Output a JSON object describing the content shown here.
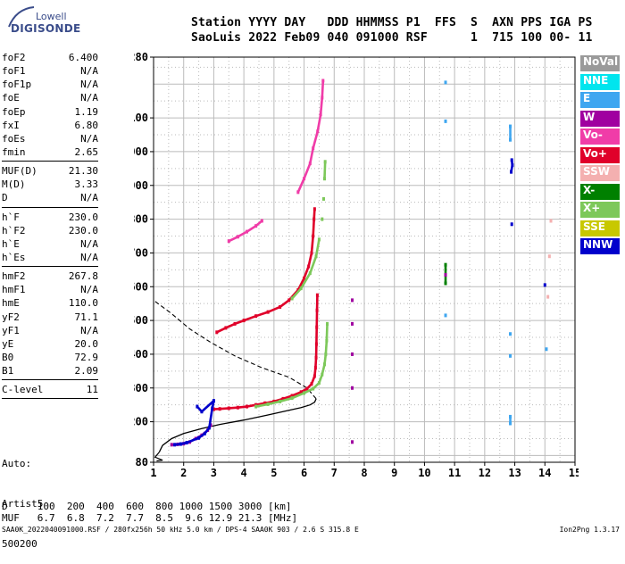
{
  "logo": {
    "line1": "Lowell",
    "line2": "DIGISONDE"
  },
  "header": {
    "labels": "Station YYYY DAY   DDD HHMMSS P1  FFS  S  AXN PPS IGA PS",
    "values": "SaoLuis 2022 Feb09 040 091000 RSF      1  715 100 00- 11"
  },
  "params": {
    "group1": [
      {
        "name": "foF2",
        "value": "6.400"
      },
      {
        "name": "foF1",
        "value": "N/A"
      },
      {
        "name": "foF1p",
        "value": "N/A"
      },
      {
        "name": "foE",
        "value": "N/A"
      },
      {
        "name": "foEp",
        "value": "1.19"
      },
      {
        "name": "fxI",
        "value": "6.80"
      },
      {
        "name": "foEs",
        "value": "N/A"
      },
      {
        "name": "fmin",
        "value": "2.65"
      }
    ],
    "group2": [
      {
        "name": "MUF(D)",
        "value": "21.30"
      },
      {
        "name": "M(D)",
        "value": "3.33"
      },
      {
        "name": "D",
        "value": "N/A"
      }
    ],
    "group3": [
      {
        "name": "h`F",
        "value": "230.0"
      },
      {
        "name": "h`F2",
        "value": "230.0"
      },
      {
        "name": "h`E",
        "value": "N/A"
      },
      {
        "name": "h`Es",
        "value": "N/A"
      }
    ],
    "group4": [
      {
        "name": "hmF2",
        "value": "267.8"
      },
      {
        "name": "hmF1",
        "value": "N/A"
      },
      {
        "name": "hmE",
        "value": "110.0"
      },
      {
        "name": "yF2",
        "value": "71.1"
      },
      {
        "name": "yF1",
        "value": "N/A"
      },
      {
        "name": "yE",
        "value": "20.0"
      },
      {
        "name": "B0",
        "value": "72.9"
      },
      {
        "name": "B1",
        "value": "2.09"
      }
    ],
    "group5": [
      {
        "name": "C-level",
        "value": "11"
      }
    ]
  },
  "autoscale": {
    "line1": "Auto:",
    "line2": "Artist5",
    "line3": "500200"
  },
  "legend": [
    {
      "label": "NoVal",
      "color": "#9a9a9a"
    },
    {
      "label": "NNE",
      "color": "#00e5ee"
    },
    {
      "label": "E",
      "color": "#3ea6f0"
    },
    {
      "label": "W",
      "color": "#a000a0"
    },
    {
      "label": "Vo-",
      "color": "#f03ca8"
    },
    {
      "label": "Vo+",
      "color": "#e0002a"
    },
    {
      "label": "SSW",
      "color": "#f4b0b0"
    },
    {
      "label": "X-",
      "color": "#008000"
    },
    {
      "label": "X+",
      "color": "#7dc85a"
    },
    {
      "label": "SSE",
      "color": "#c8c800"
    },
    {
      "label": "NNW",
      "color": "#0000cc"
    }
  ],
  "footer": {
    "d_line": "D     100  200  400  600  800 1000 1500 3000 [km]",
    "muf_line": "MUF   6.7  6.8  7.2  7.7  8.5  9.6 12.9 21.3 [MHz]",
    "file_line": "SAA0K_2022040091000.RSF / 280fx256h 50 kHz 5.0 km / DPS-4 SAA0K 903 / 2.6 S 315.8 E",
    "version": "Ion2Png 1.3.17"
  },
  "chart_data": {
    "type": "scatter",
    "title": "",
    "xlabel": "",
    "ylabel": "",
    "xlim": [
      1,
      15
    ],
    "ylim": [
      80,
      1280
    ],
    "x_ticks": [
      1,
      2,
      3,
      4,
      5,
      6,
      7,
      8,
      9,
      10,
      11,
      12,
      13,
      14,
      15
    ],
    "y_ticks": [
      80,
      200,
      300,
      400,
      500,
      600,
      700,
      800,
      900,
      1000,
      1100,
      1280
    ],
    "series": [
      {
        "name": "Vo+",
        "color": "#e0002a",
        "points": [
          [
            3.0,
            237
          ],
          [
            3.2,
            238
          ],
          [
            3.5,
            240
          ],
          [
            3.8,
            242
          ],
          [
            4.1,
            245
          ],
          [
            4.4,
            250
          ],
          [
            4.7,
            255
          ],
          [
            5.0,
            260
          ],
          [
            5.3,
            268
          ],
          [
            5.6,
            277
          ],
          [
            5.9,
            288
          ],
          [
            6.1,
            298
          ],
          [
            6.25,
            312
          ],
          [
            6.35,
            335
          ],
          [
            6.38,
            360
          ],
          [
            6.4,
            390
          ],
          [
            6.41,
            430
          ],
          [
            6.42,
            480
          ],
          [
            6.43,
            530
          ],
          [
            6.44,
            575
          ]
        ]
      },
      {
        "name": "X+",
        "color": "#7dc85a",
        "points": [
          [
            4.4,
            245
          ],
          [
            4.8,
            252
          ],
          [
            5.2,
            260
          ],
          [
            5.6,
            270
          ],
          [
            6.0,
            285
          ],
          [
            6.3,
            298
          ],
          [
            6.5,
            315
          ],
          [
            6.6,
            340
          ],
          [
            6.68,
            370
          ],
          [
            6.72,
            400
          ],
          [
            6.75,
            440
          ],
          [
            6.77,
            490
          ]
        ]
      },
      {
        "name": "Vo+ 2nd",
        "color": "#e0002a",
        "points": [
          [
            3.1,
            465
          ],
          [
            3.4,
            478
          ],
          [
            3.7,
            490
          ],
          [
            4.0,
            500
          ],
          [
            4.4,
            513
          ],
          [
            4.8,
            525
          ],
          [
            5.2,
            540
          ],
          [
            5.5,
            560
          ],
          [
            5.8,
            590
          ],
          [
            6.0,
            625
          ],
          [
            6.15,
            660
          ],
          [
            6.25,
            700
          ],
          [
            6.3,
            750
          ],
          [
            6.33,
            800
          ],
          [
            6.35,
            830
          ]
        ]
      },
      {
        "name": "X+ 2nd",
        "color": "#7dc85a",
        "points": [
          [
            5.6,
            565
          ],
          [
            5.9,
            595
          ],
          [
            6.2,
            640
          ],
          [
            6.4,
            690
          ],
          [
            6.5,
            740
          ],
          [
            6.6,
            800
          ],
          [
            6.65,
            860
          ],
          [
            6.68,
            920
          ],
          [
            6.7,
            970
          ]
        ]
      },
      {
        "name": "Vo- 3rd",
        "color": "#f03ca8",
        "points": [
          [
            3.5,
            735
          ],
          [
            3.8,
            748
          ],
          [
            4.1,
            763
          ],
          [
            4.4,
            780
          ],
          [
            4.6,
            795
          ],
          [
            5.8,
            880
          ],
          [
            6.0,
            920
          ],
          [
            6.2,
            965
          ],
          [
            6.3,
            1010
          ],
          [
            6.45,
            1060
          ],
          [
            6.55,
            1110
          ],
          [
            6.6,
            1160
          ],
          [
            6.63,
            1210
          ]
        ]
      },
      {
        "name": "W low",
        "color": "#a000a0",
        "points": [
          [
            1.6,
            132
          ],
          [
            1.8,
            133
          ],
          [
            2.0,
            135
          ],
          [
            2.2,
            140
          ],
          [
            2.4,
            150
          ],
          [
            2.6,
            160
          ],
          [
            2.8,
            175
          ],
          [
            2.9,
            190
          ]
        ]
      },
      {
        "name": "NNW low",
        "color": "#0000cc",
        "points": [
          [
            1.7,
            132
          ],
          [
            1.9,
            134
          ],
          [
            2.1,
            138
          ],
          [
            2.5,
            152
          ],
          [
            2.7,
            165
          ],
          [
            2.85,
            182
          ],
          [
            2.95,
            240
          ],
          [
            3.0,
            262
          ],
          [
            2.6,
            230
          ],
          [
            2.45,
            245
          ]
        ]
      },
      {
        "name": "E",
        "color": "#3ea6f0",
        "points": [
          [
            10.7,
            1205
          ],
          [
            10.7,
            1090
          ],
          [
            10.7,
            515
          ],
          [
            12.85,
            1075
          ],
          [
            12.85,
            1035
          ],
          [
            12.85,
            460
          ],
          [
            12.85,
            395
          ],
          [
            12.85,
            215
          ],
          [
            12.85,
            195
          ],
          [
            14.05,
            415
          ]
        ]
      },
      {
        "name": "NNW",
        "color": "#0000cc",
        "points": [
          [
            12.9,
            975
          ],
          [
            12.92,
            960
          ],
          [
            12.88,
            940
          ],
          [
            12.9,
            785
          ],
          [
            14.0,
            605
          ]
        ]
      },
      {
        "name": "X- ",
        "color": "#008000",
        "points": [
          [
            10.7,
            665
          ],
          [
            10.7,
            610
          ]
        ]
      },
      {
        "name": "W",
        "color": "#a000a0",
        "points": [
          [
            7.6,
            560
          ],
          [
            7.6,
            490
          ],
          [
            7.6,
            400
          ],
          [
            7.6,
            300
          ],
          [
            7.6,
            140
          ],
          [
            10.7,
            635
          ]
        ]
      },
      {
        "name": "SSW",
        "color": "#f4b0b0",
        "points": [
          [
            14.2,
            795
          ],
          [
            14.15,
            690
          ],
          [
            14.1,
            570
          ]
        ]
      }
    ],
    "profile_solid": [
      [
        1.19,
        110
      ],
      [
        1.3,
        130
      ],
      [
        1.6,
        150
      ],
      [
        2.0,
        165
      ],
      [
        2.6,
        180
      ],
      [
        3.2,
        192
      ],
      [
        4.0,
        205
      ],
      [
        4.8,
        220
      ],
      [
        5.4,
        232
      ],
      [
        5.9,
        242
      ],
      [
        6.2,
        250
      ],
      [
        6.35,
        258
      ],
      [
        6.4,
        267.8
      ]
    ],
    "profile_dashed": [
      [
        6.4,
        267.8
      ],
      [
        6.1,
        300
      ],
      [
        5.5,
        332
      ],
      [
        4.6,
        360
      ],
      [
        3.7,
        395
      ],
      [
        2.9,
        435
      ],
      [
        2.2,
        475
      ],
      [
        1.6,
        520
      ],
      [
        1.0,
        560
      ]
    ],
    "profile_low": [
      [
        1.19,
        110
      ],
      [
        1.05,
        95
      ],
      [
        1.3,
        86
      ],
      [
        1.1,
        84
      ]
    ]
  }
}
